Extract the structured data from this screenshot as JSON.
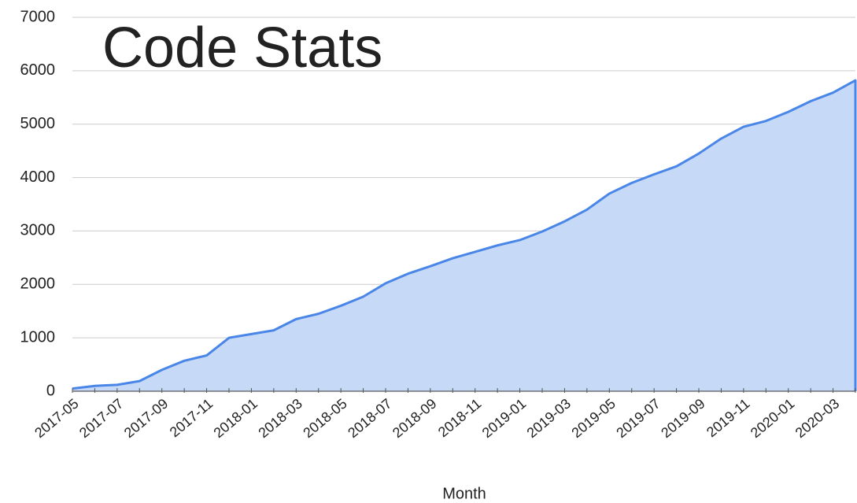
{
  "chart_data": {
    "type": "area",
    "title": "Code Stats",
    "x_label": "Month",
    "categories": [
      "2017-05",
      null,
      "2017-07",
      null,
      "2017-09",
      null,
      "2017-11",
      null,
      "2018-01",
      null,
      "2018-03",
      null,
      "2018-05",
      null,
      "2018-07",
      null,
      "2018-09",
      null,
      "2018-11",
      null,
      "2019-01",
      null,
      "2019-03",
      null,
      "2019-05",
      null,
      "2019-07",
      null,
      "2019-09",
      null,
      "2019-11",
      null,
      "2020-01",
      null,
      "2020-03",
      null
    ],
    "values": [
      50,
      100,
      120,
      190,
      400,
      570,
      670,
      1000,
      1070,
      1140,
      1350,
      1450,
      1600,
      1770,
      2020,
      2200,
      2340,
      2490,
      2610,
      2730,
      2830,
      2990,
      3180,
      3400,
      3700,
      3900,
      4060,
      4210,
      4450,
      4730,
      4950,
      5060,
      5230,
      5430,
      5590,
      5820
    ],
    "color": "#4a86e8",
    "fill_color": "#c6d9f7",
    "ylim": [
      0,
      7000
    ],
    "yticks": [
      0,
      1000,
      2000,
      3000,
      4000,
      5000,
      6000,
      7000
    ],
    "grid": true
  }
}
